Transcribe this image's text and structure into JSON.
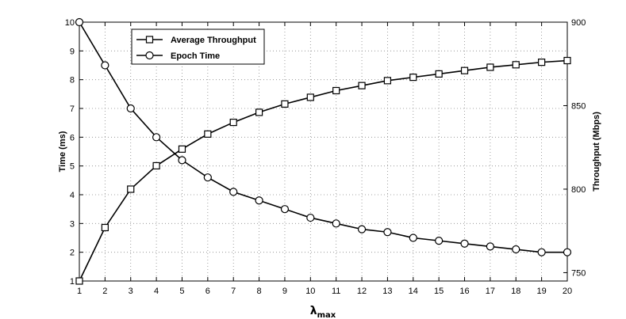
{
  "chart_data": {
    "type": "line",
    "x": [
      1,
      2,
      3,
      4,
      5,
      6,
      7,
      8,
      9,
      10,
      11,
      12,
      13,
      14,
      15,
      16,
      17,
      18,
      19,
      20
    ],
    "xticks": [
      "1",
      "2",
      "3",
      "4",
      "5",
      "6",
      "7",
      "8",
      "9",
      "10",
      "11",
      "12",
      "13",
      "14",
      "15",
      "16",
      "17",
      "18",
      "19",
      "20"
    ],
    "xlabel_main": "λ",
    "xlabel_sub": "max",
    "ylabel_left": "Time (ms)",
    "ylabel_right": "Throughput (Mbps)",
    "ylim_left": [
      1,
      10
    ],
    "ylim_right": [
      745,
      900
    ],
    "yticks_left": [
      "1",
      "2",
      "3",
      "4",
      "5",
      "6",
      "7",
      "8",
      "9",
      "10"
    ],
    "yticks_right": [
      "750",
      "800",
      "850",
      "900"
    ],
    "grid": true,
    "legend_placement": "top-left",
    "series": [
      {
        "name": "Average Throughput",
        "axis": "right",
        "marker": "square",
        "values": [
          745,
          777,
          800,
          814,
          824,
          833,
          840,
          846,
          851,
          855,
          859,
          862,
          865,
          867,
          869,
          871,
          873,
          874.5,
          876,
          877
        ]
      },
      {
        "name": "Epoch Time",
        "axis": "left",
        "marker": "circle",
        "values": [
          10,
          8.5,
          7,
          6,
          5.2,
          4.6,
          4.1,
          3.8,
          3.5,
          3.2,
          3.0,
          2.8,
          2.7,
          2.5,
          2.4,
          2.3,
          2.2,
          2.1,
          2.0,
          2.0
        ]
      }
    ]
  }
}
